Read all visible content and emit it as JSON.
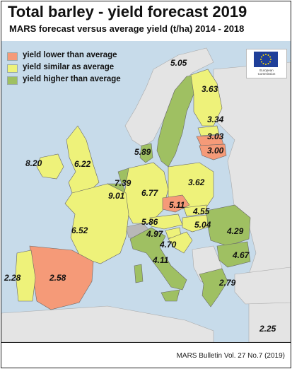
{
  "title": "Total barley - yield forecast 2019",
  "subtitle": "MARS forecast versus average yield (t/ha) 2014 - 2018",
  "legend": [
    {
      "label": "yield lower than average",
      "color": "#f59a78"
    },
    {
      "label": "yield similar as average",
      "color": "#eef27a"
    },
    {
      "label": "yield higher than average",
      "color": "#9fc062"
    }
  ],
  "colors": {
    "sea": "#c7dbea",
    "non_eu": "#e4e4e4",
    "lower": "#f59a78",
    "similar": "#eef27a",
    "higher": "#9fc062",
    "no_data": "#b8b8b8"
  },
  "logo": {
    "icon": "eu-flag-icon",
    "caption": "European Commission"
  },
  "regions": [
    {
      "value": "5.05",
      "category": "higher"
    },
    {
      "value": "3.63",
      "category": "similar"
    },
    {
      "value": "3.34",
      "category": "similar"
    },
    {
      "value": "3.03",
      "category": "lower"
    },
    {
      "value": "3.00",
      "category": "lower"
    },
    {
      "value": "5.89",
      "category": "higher"
    },
    {
      "value": "8.20",
      "category": "similar"
    },
    {
      "value": "6.22",
      "category": "similar"
    },
    {
      "value": "7.39",
      "category": "higher"
    },
    {
      "value": "9.01",
      "category": "higher"
    },
    {
      "value": "6.77",
      "category": "similar"
    },
    {
      "value": "3.62",
      "category": "similar"
    },
    {
      "value": "5.11",
      "category": "lower"
    },
    {
      "value": "4.55",
      "category": "similar"
    },
    {
      "value": "5.86",
      "category": "similar"
    },
    {
      "value": "5.04",
      "category": "similar"
    },
    {
      "value": "4.97",
      "category": "similar"
    },
    {
      "value": "4.70",
      "category": "similar"
    },
    {
      "value": "6.52",
      "category": "similar"
    },
    {
      "value": "4.29",
      "category": "higher"
    },
    {
      "value": "4.67",
      "category": "higher"
    },
    {
      "value": "4.11",
      "category": "higher"
    },
    {
      "value": "2.28",
      "category": "similar"
    },
    {
      "value": "2.58",
      "category": "lower"
    },
    {
      "value": "2.79",
      "category": "higher"
    },
    {
      "value": "2.25",
      "category": "higher"
    }
  ],
  "footer": "MARS Bulletin Vol. 27 No.7 (2019)"
}
